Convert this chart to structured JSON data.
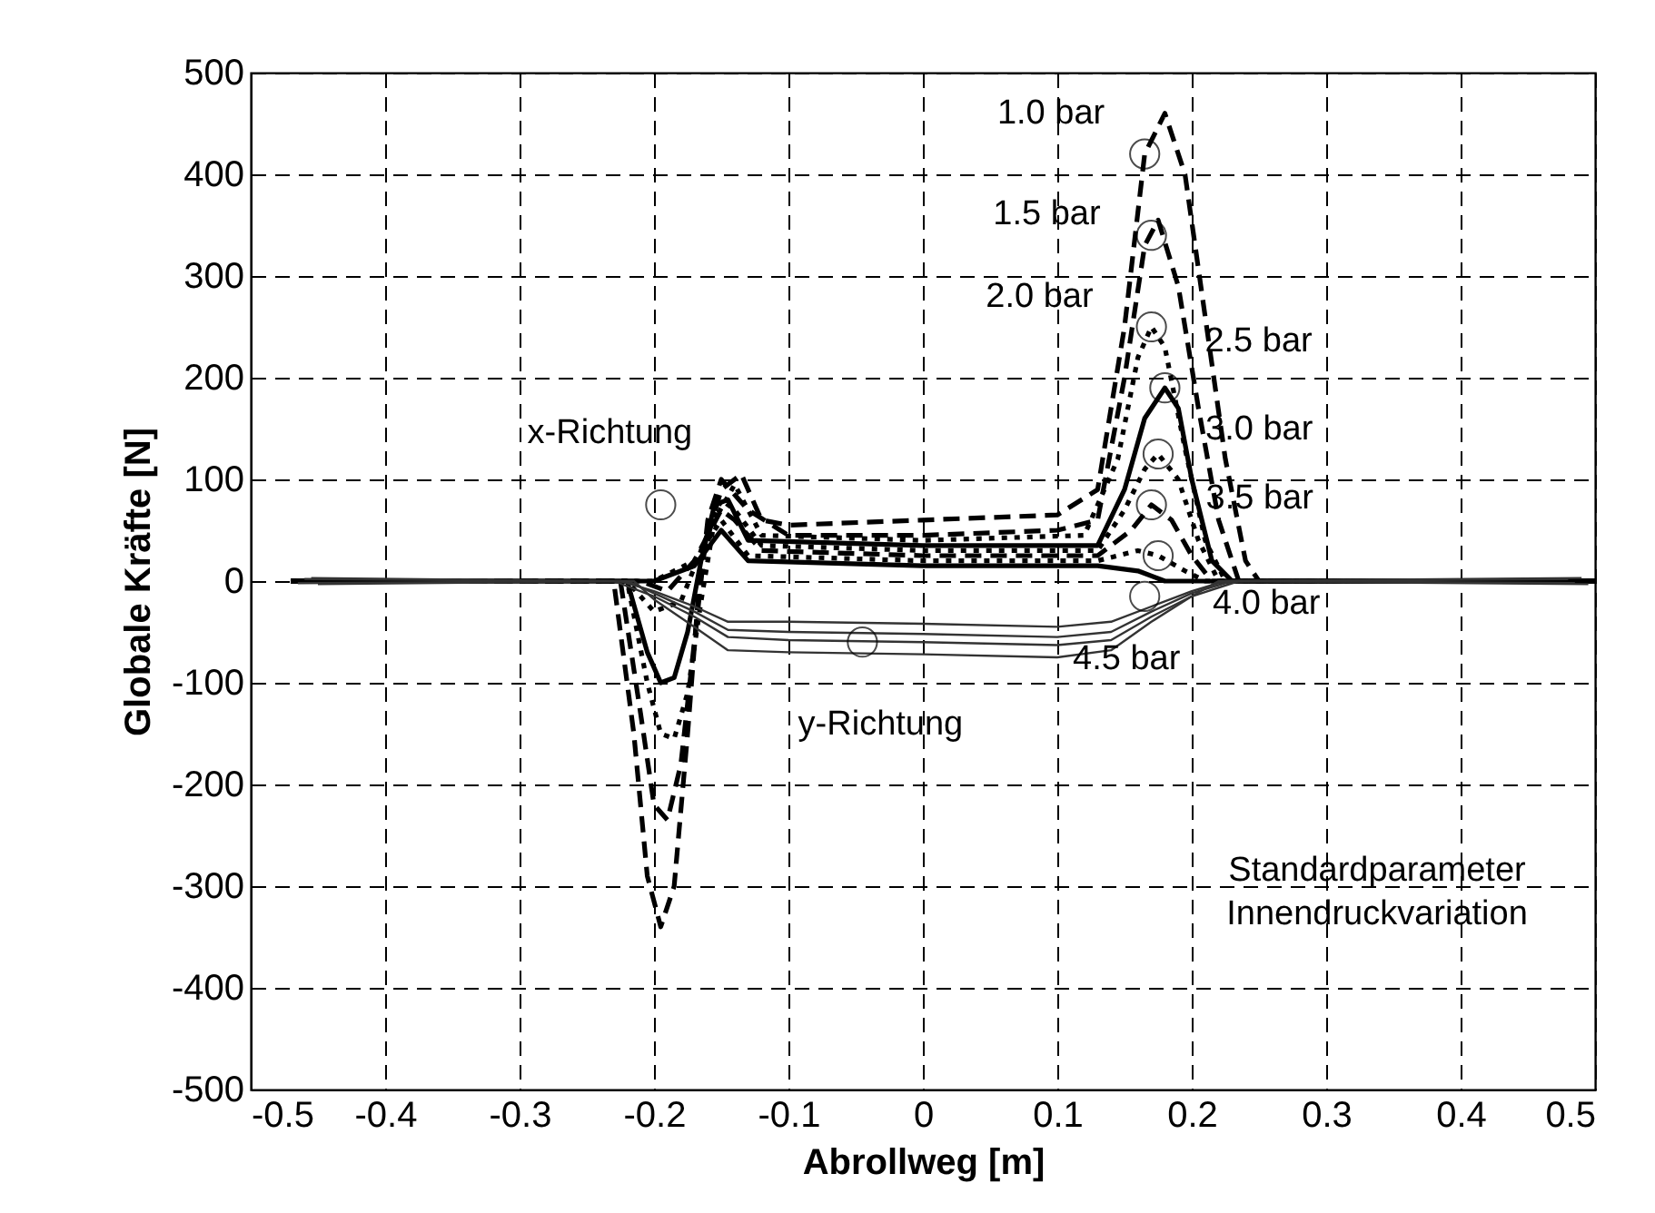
{
  "chart_data": {
    "type": "line",
    "xlabel": "Abrollweg [m]",
    "ylabel": "Globale Kräfte [N]",
    "xlim": [
      -0.5,
      0.5
    ],
    "xticks": [
      -0.5,
      -0.4,
      -0.3,
      -0.2,
      -0.1,
      0,
      0.1,
      0.2,
      0.3,
      0.4,
      0.5
    ],
    "ylim": [
      -500,
      500
    ],
    "yticks": [
      -500,
      -400,
      -300,
      -200,
      -100,
      0,
      100,
      200,
      300,
      400,
      500
    ],
    "grid": true,
    "marker": "none",
    "series": [
      {
        "color": "#000000",
        "line_style": "dashed",
        "x": [
          -0.47,
          -0.23,
          -0.215,
          -0.205,
          -0.195,
          -0.185,
          -0.175,
          -0.165,
          -0.15,
          -0.135,
          -0.12,
          -0.1,
          0,
          0.1,
          0.13,
          0.15,
          0.165,
          0.18,
          0.195,
          0.21,
          0.225,
          0.24,
          0.25,
          0.5
        ],
        "values": [
          0,
          0,
          -150,
          -290,
          -340,
          -300,
          -150,
          20,
          90,
          105,
          60,
          55,
          60,
          65,
          90,
          250,
          420,
          460,
          400,
          260,
          120,
          20,
          0,
          0
        ]
      },
      {
        "color": "#000000",
        "line_style": "dashed",
        "x": [
          -0.47,
          -0.225,
          -0.21,
          -0.2,
          -0.19,
          -0.18,
          -0.17,
          -0.16,
          -0.15,
          -0.13,
          -0.1,
          0,
          0.1,
          0.13,
          0.15,
          0.165,
          0.175,
          0.19,
          0.205,
          0.22,
          0.235,
          0.5
        ],
        "values": [
          0,
          0,
          -130,
          -220,
          -235,
          -180,
          -60,
          60,
          100,
          70,
          45,
          45,
          50,
          60,
          200,
          330,
          355,
          290,
          170,
          60,
          0,
          0
        ]
      },
      {
        "color": "#000000",
        "line_style": "dotted",
        "x": [
          -0.47,
          -0.22,
          -0.205,
          -0.195,
          -0.185,
          -0.175,
          -0.165,
          -0.155,
          -0.14,
          -0.12,
          0,
          0.12,
          0.145,
          0.16,
          0.17,
          0.18,
          0.195,
          0.21,
          0.225,
          0.5
        ],
        "values": [
          0,
          0,
          -100,
          -150,
          -155,
          -110,
          -20,
          60,
          95,
          45,
          40,
          45,
          120,
          220,
          250,
          230,
          130,
          40,
          0,
          0
        ]
      },
      {
        "color": "#000000",
        "line_style": "solid",
        "x": [
          -0.47,
          -0.22,
          -0.205,
          -0.195,
          -0.185,
          -0.175,
          -0.165,
          -0.155,
          -0.145,
          -0.13,
          0,
          0.13,
          0.15,
          0.165,
          0.18,
          0.19,
          0.2,
          0.215,
          0.23,
          0.5
        ],
        "values": [
          0,
          0,
          -70,
          -100,
          -95,
          -50,
          20,
          75,
          80,
          40,
          35,
          35,
          90,
          160,
          190,
          170,
          100,
          20,
          0,
          0
        ]
      },
      {
        "color": "#000000",
        "line_style": "dotted",
        "x": [
          -0.47,
          -0.22,
          -0.2,
          -0.18,
          -0.165,
          -0.15,
          -0.14,
          -0.12,
          0,
          0.13,
          0.15,
          0.165,
          0.175,
          0.19,
          0.205,
          0.22,
          0.5
        ],
        "values": [
          0,
          0,
          -30,
          -20,
          30,
          80,
          70,
          35,
          30,
          30,
          70,
          110,
          125,
          100,
          40,
          0,
          0
        ]
      },
      {
        "color": "#000000",
        "line_style": "dashed",
        "x": [
          -0.47,
          -0.21,
          -0.19,
          -0.17,
          -0.15,
          -0.14,
          -0.12,
          0,
          0.13,
          0.155,
          0.17,
          0.185,
          0.2,
          0.215,
          0.5
        ],
        "values": [
          0,
          0,
          -10,
          20,
          70,
          60,
          30,
          25,
          25,
          50,
          75,
          60,
          25,
          0,
          0
        ]
      },
      {
        "color": "#000000",
        "line_style": "dotted",
        "x": [
          -0.47,
          -0.2,
          -0.17,
          -0.15,
          -0.13,
          0,
          0.13,
          0.16,
          0.175,
          0.195,
          0.21,
          0.5
        ],
        "values": [
          0,
          0,
          20,
          60,
          25,
          20,
          20,
          30,
          25,
          10,
          0,
          0
        ]
      },
      {
        "color": "#000000",
        "line_style": "solid",
        "x": [
          -0.47,
          -0.2,
          -0.17,
          -0.15,
          -0.13,
          0,
          0.13,
          0.16,
          0.18,
          0.2,
          0.5
        ],
        "values": [
          0,
          0,
          15,
          50,
          20,
          15,
          15,
          10,
          0,
          0,
          0
        ]
      },
      {
        "color": "#333333",
        "line_style": "solid",
        "x": [
          -0.46,
          -0.225,
          -0.2,
          -0.17,
          -0.145,
          -0.1,
          0,
          0.1,
          0.14,
          0.17,
          0.2,
          0.225,
          0.49
        ],
        "values": [
          2,
          0,
          -10,
          -25,
          -40,
          -40,
          -42,
          -45,
          -40,
          -25,
          -10,
          0,
          3
        ]
      },
      {
        "color": "#333333",
        "line_style": "solid",
        "x": [
          -0.465,
          -0.22,
          -0.2,
          -0.17,
          -0.145,
          -0.1,
          0,
          0.1,
          0.14,
          0.17,
          0.2,
          0.23,
          0.495
        ],
        "values": [
          -2,
          0,
          -12,
          -30,
          -48,
          -50,
          -52,
          -55,
          -50,
          -30,
          -12,
          0,
          -3
        ]
      },
      {
        "color": "#333333",
        "line_style": "solid",
        "x": [
          -0.455,
          -0.23,
          -0.2,
          -0.17,
          -0.145,
          -0.1,
          0,
          0.1,
          0.14,
          0.17,
          0.2,
          0.22,
          0.485
        ],
        "values": [
          3,
          0,
          -15,
          -35,
          -55,
          -58,
          -60,
          -63,
          -58,
          -35,
          -15,
          0,
          -2
        ]
      },
      {
        "color": "#333333",
        "line_style": "solid",
        "x": [
          -0.45,
          -0.215,
          -0.2,
          -0.17,
          -0.145,
          -0.1,
          0,
          0.1,
          0.14,
          0.17,
          0.2,
          0.235,
          0.48
        ],
        "values": [
          -3,
          0,
          -18,
          -45,
          -68,
          -70,
          -72,
          -75,
          -68,
          -40,
          -15,
          0,
          2
        ]
      }
    ],
    "annotations": [
      {
        "text": "x-Richtung",
        "x": -0.195,
        "y": 75
      },
      {
        "text": "y-Richtung",
        "x": -0.045,
        "y": -60
      },
      {
        "text": "1.0 bar",
        "x": 0.165,
        "y": 420
      },
      {
        "text": "1.5 bar",
        "x": 0.17,
        "y": 340
      },
      {
        "text": "2.0 bar",
        "x": 0.17,
        "y": 250
      },
      {
        "text": "2.5 bar",
        "x": 0.18,
        "y": 190
      },
      {
        "text": "3.0 bar",
        "x": 0.175,
        "y": 125
      },
      {
        "text": "3.5 bar",
        "x": 0.17,
        "y": 75
      },
      {
        "text": "4.0 bar",
        "x": 0.175,
        "y": 25
      },
      {
        "text": "4.5 bar",
        "x": 0.165,
        "y": -15
      },
      "Standardparameter\nInnendruckvariation"
    ]
  }
}
